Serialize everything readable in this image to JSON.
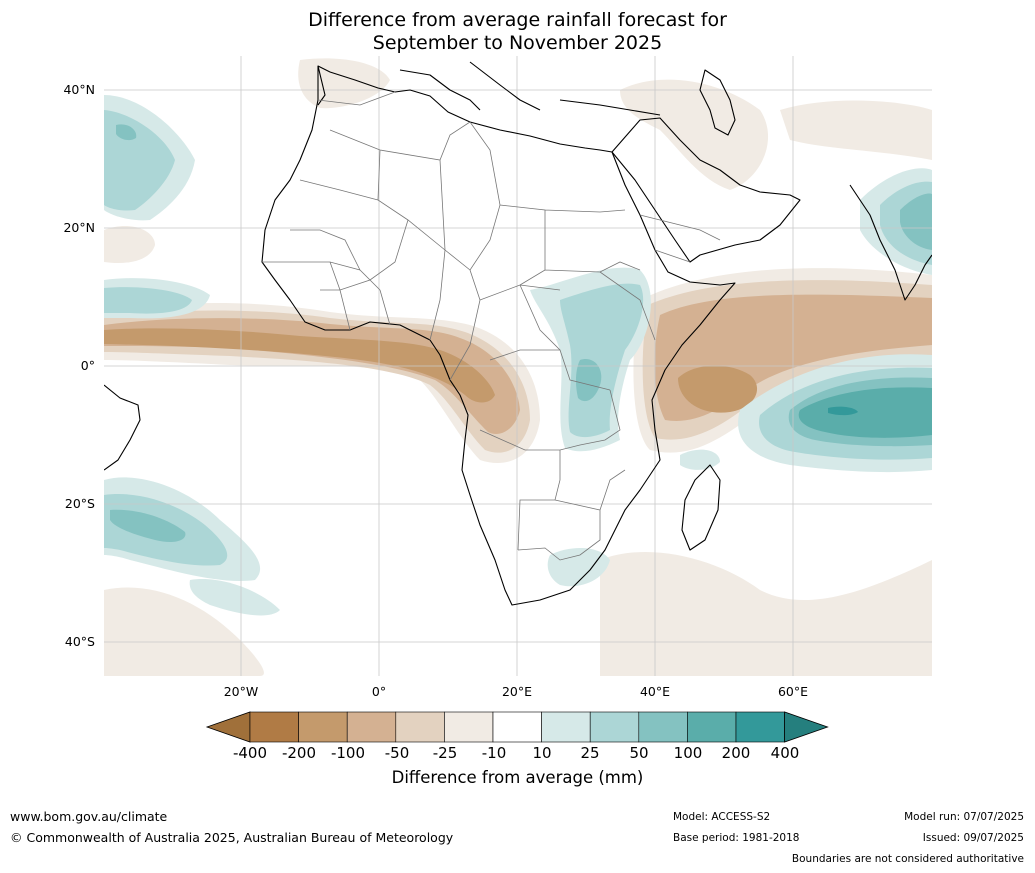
{
  "title": {
    "line1": "Difference from average rainfall forecast for",
    "line2": "September to November 2025"
  },
  "axes": {
    "lat_labels": [
      "40°N",
      "20°N",
      "0°",
      "20°S",
      "40°S"
    ],
    "lon_labels": [
      "20°W",
      "0°",
      "20°E",
      "40°E",
      "60°E"
    ]
  },
  "colorbar": {
    "ticks": [
      "-400",
      "-200",
      "-100",
      "-50",
      "-25",
      "-10",
      "10",
      "25",
      "50",
      "100",
      "200",
      "400"
    ],
    "colors": [
      "#a0703a",
      "#b07b45",
      "#c49a6c",
      "#d4b192",
      "#e3d2c0",
      "#f1ebe4",
      "#ffffff",
      "#d6e9e8",
      "#acd6d6",
      "#84c2c1",
      "#5aadaa",
      "#33999a",
      "#257f7e"
    ],
    "title": "Difference from average (mm)"
  },
  "palette": {
    "dry1": "#f1ebe4",
    "dry2": "#e3d2c0",
    "dry3": "#d4b192",
    "dry4": "#c49a6c",
    "dry5": "#b07b45",
    "wet1": "#d6e9e8",
    "wet2": "#acd6d6",
    "wet3": "#84c2c1",
    "wet4": "#5aadaa",
    "wet5": "#33999a"
  },
  "footer": {
    "url": "www.bom.gov.au/climate",
    "copyright": "© Commonwealth of Australia 2025, Australian Bureau of Meteorology",
    "model": "Model: ACCESS-S2",
    "base_period": "Base period: 1981-2018",
    "model_run": "Model run: 07/07/2025",
    "issued": "Issued: 09/07/2025",
    "disclaimer": "Boundaries are not considered authoritative"
  }
}
